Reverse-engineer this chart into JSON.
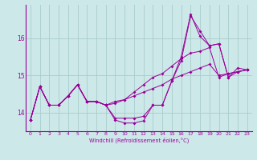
{
  "xlabel": "Windchill (Refroidissement éolien,°C)",
  "bg_color": "#cce8e8",
  "grid_color": "#aacccc",
  "line_color": "#990099",
  "ylim": [
    13.5,
    16.9
  ],
  "xlim": [
    -0.5,
    23.5
  ],
  "xticks": [
    0,
    1,
    2,
    3,
    4,
    5,
    6,
    7,
    8,
    9,
    10,
    11,
    12,
    13,
    14,
    15,
    16,
    17,
    18,
    19,
    20,
    21,
    22,
    23
  ],
  "yticks": [
    14,
    15,
    16
  ],
  "marker_size": 2.0,
  "linewidth": 0.7,
  "series": [
    [
      13.8,
      14.7,
      14.2,
      14.2,
      14.45,
      14.75,
      14.3,
      14.3,
      14.2,
      13.85,
      13.85,
      13.85,
      13.9,
      14.2,
      14.2,
      14.85,
      15.4,
      16.6,
      16.2,
      15.8,
      15.85,
      14.95,
      15.1,
      15.15
    ],
    [
      13.8,
      14.7,
      14.2,
      14.2,
      14.45,
      14.75,
      14.3,
      14.3,
      14.2,
      14.3,
      14.35,
      14.55,
      14.75,
      14.95,
      15.05,
      15.25,
      15.45,
      15.6,
      15.65,
      15.75,
      14.95,
      15.05,
      15.1,
      15.15
    ],
    [
      13.8,
      14.7,
      14.2,
      14.2,
      14.45,
      14.75,
      14.3,
      14.3,
      14.2,
      14.25,
      14.35,
      14.45,
      14.55,
      14.65,
      14.75,
      14.9,
      15.0,
      15.1,
      15.2,
      15.3,
      15.0,
      15.05,
      15.1,
      15.15
    ],
    [
      13.8,
      14.7,
      14.2,
      14.2,
      14.45,
      14.75,
      14.3,
      14.3,
      14.2,
      13.8,
      13.72,
      13.72,
      13.78,
      14.2,
      14.2,
      14.85,
      15.5,
      16.65,
      16.05,
      15.8,
      15.85,
      14.95,
      15.2,
      15.15
    ]
  ]
}
